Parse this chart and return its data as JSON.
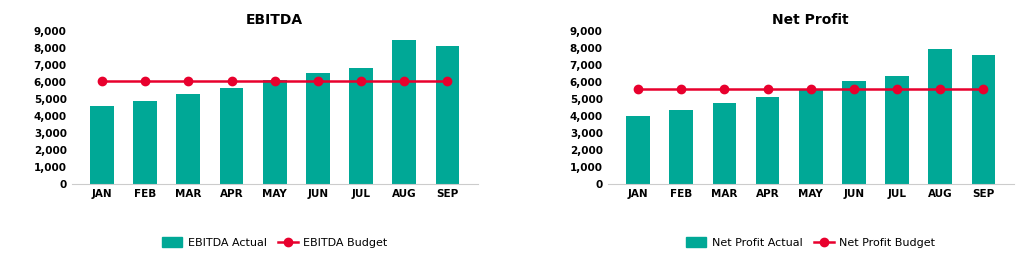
{
  "months": [
    "JAN",
    "FEB",
    "MAR",
    "APR",
    "MAY",
    "JUN",
    "JUL",
    "AUG",
    "SEP"
  ],
  "ebitda_actual": [
    4600,
    4900,
    5300,
    5650,
    6100,
    6550,
    6800,
    8450,
    8100
  ],
  "ebitda_budget": [
    6050,
    6050,
    6050,
    6050,
    6050,
    6050,
    6050,
    6050,
    6050
  ],
  "netprofit_actual": [
    4000,
    4350,
    4750,
    5100,
    5600,
    6050,
    6350,
    7950,
    7600
  ],
  "netprofit_budget": [
    5600,
    5600,
    5600,
    5600,
    5600,
    5600,
    5600,
    5600,
    5600
  ],
  "bar_color": "#00A896",
  "line_color": "#E8002D",
  "background_color": "#FFFFFF",
  "title_ebitda": "EBITDA",
  "title_netprofit": "Net Profit",
  "legend_actual_ebitda": "EBITDA Actual",
  "legend_budget_ebitda": "EBITDA Budget",
  "legend_actual_netprofit": "Net Profit Actual",
  "legend_budget_netprofit": "Net Profit Budget",
  "ylim": [
    0,
    9000
  ],
  "yticks": [
    0,
    1000,
    2000,
    3000,
    4000,
    5000,
    6000,
    7000,
    8000,
    9000
  ],
  "title_fontsize": 10,
  "tick_fontsize": 7.5,
  "legend_fontsize": 8,
  "axis_label_weight": "bold"
}
